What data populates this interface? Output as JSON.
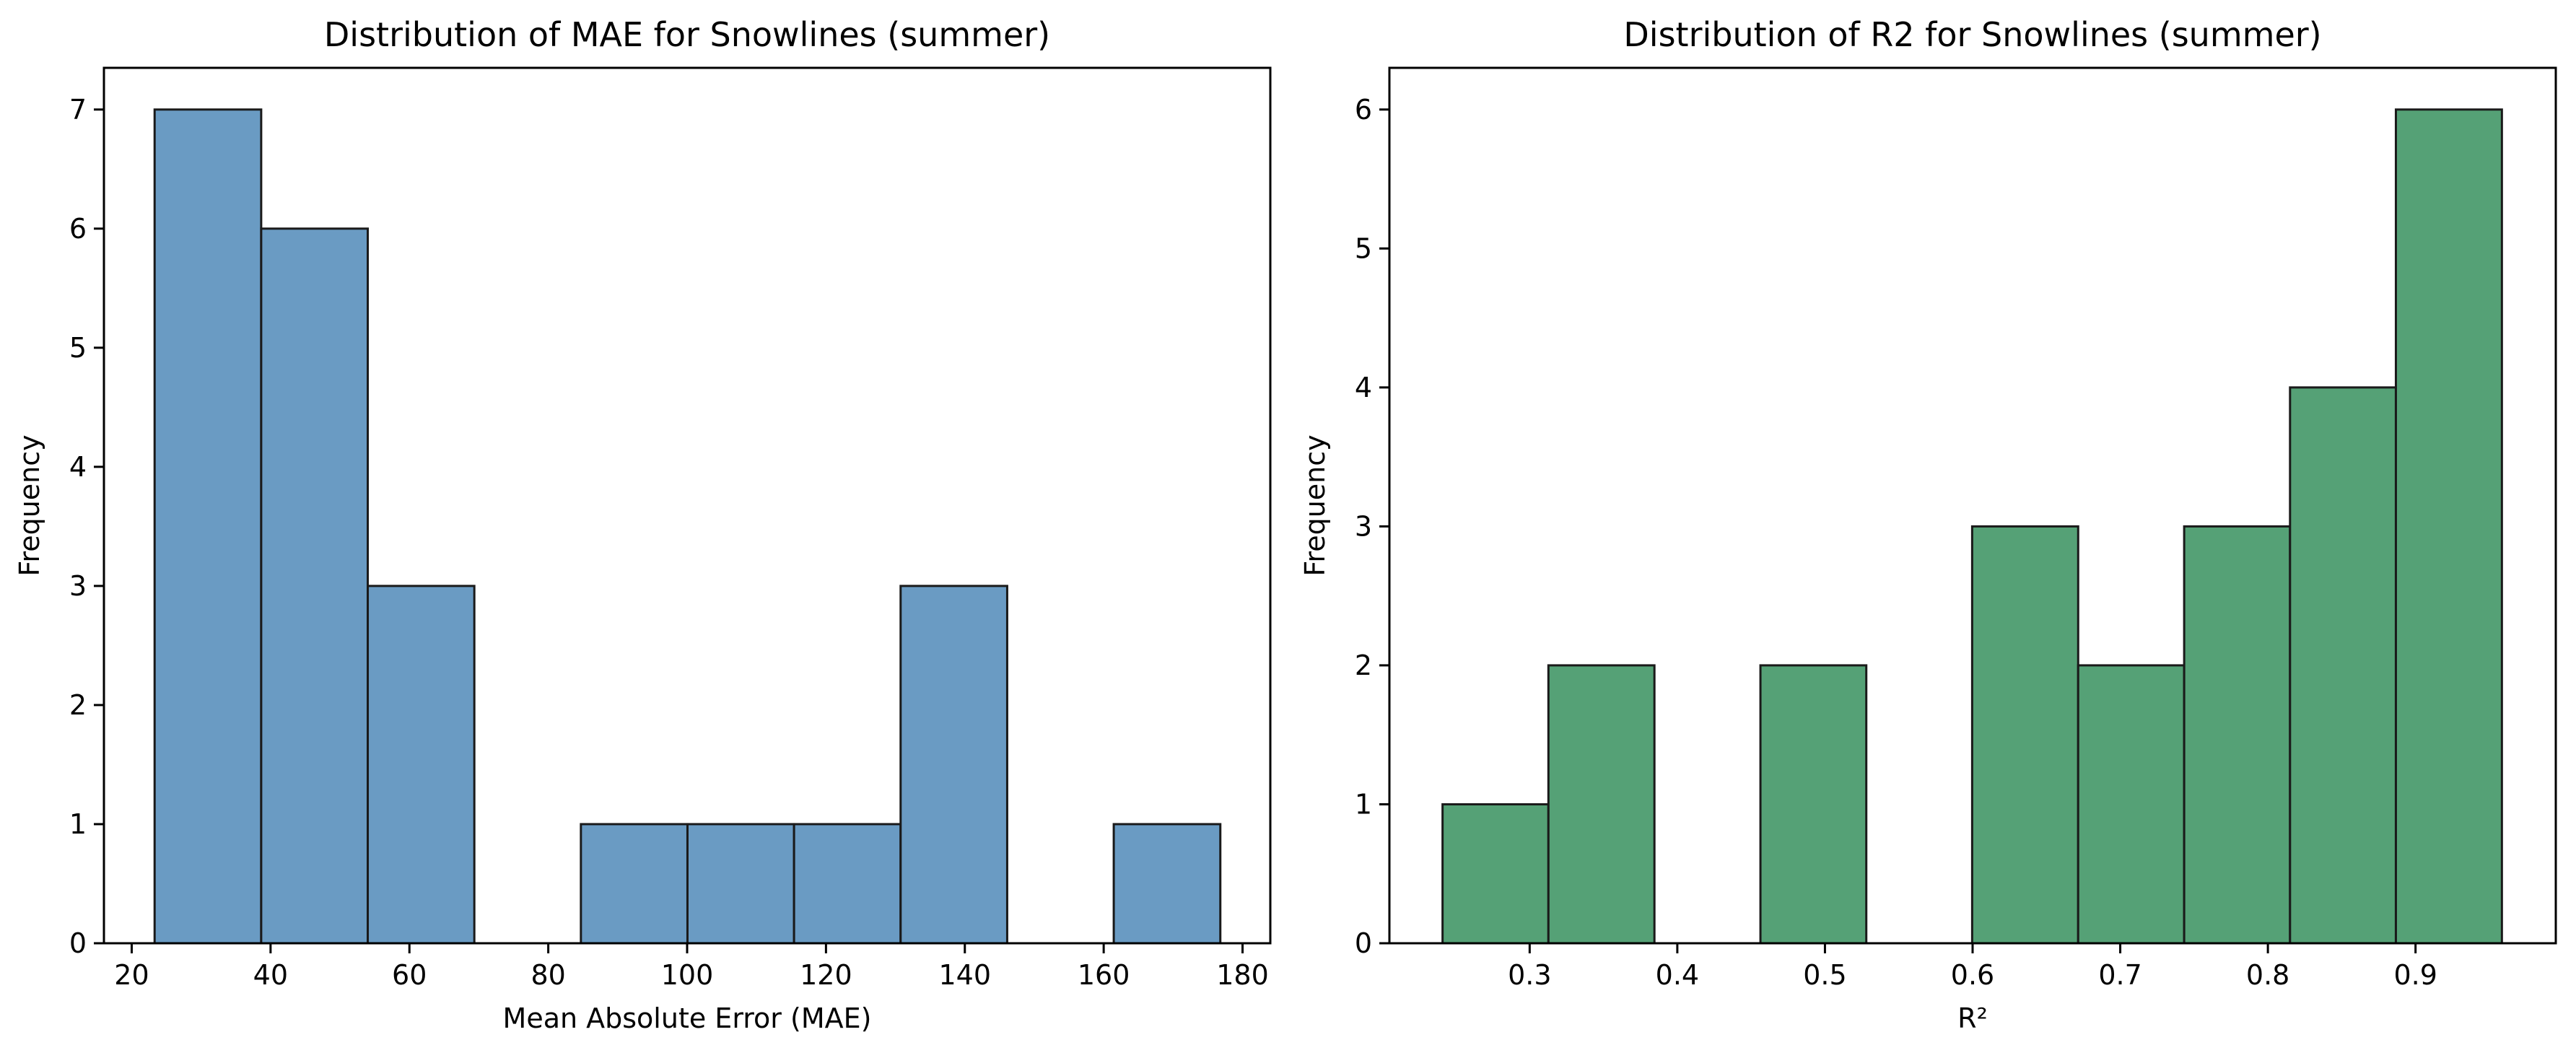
{
  "chart_data": [
    {
      "type": "bar",
      "title": "Distribution of MAE for Snowlines (summer)",
      "xlabel": "Mean Absolute Error (MAE)",
      "ylabel": "Frequency",
      "color": "#6a9bc3",
      "xlim": [
        16,
        184
      ],
      "ylim": [
        0,
        7.35
      ],
      "xticks": [
        20,
        40,
        60,
        80,
        100,
        120,
        140,
        160,
        180
      ],
      "yticks": [
        0,
        1,
        2,
        3,
        4,
        5,
        6,
        7
      ],
      "bin_edges": [
        23.3,
        38.65,
        54.0,
        69.35,
        84.7,
        100.05,
        115.4,
        130.75,
        146.1,
        161.45,
        176.8
      ],
      "values": [
        7,
        6,
        3,
        0,
        1,
        1,
        1,
        3,
        0,
        1
      ],
      "grid": false
    },
    {
      "type": "bar",
      "title": "Distribution of R2 for Snowlines (summer)",
      "xlabel": "R²",
      "ylabel": "Frequency",
      "color": "#55a176",
      "xlim": [
        0.205,
        0.995
      ],
      "ylim": [
        0,
        6.3
      ],
      "xticks": [
        0.3,
        0.4,
        0.5,
        0.6,
        0.7,
        0.8,
        0.9
      ],
      "yticks": [
        0,
        1,
        2,
        3,
        4,
        5,
        6
      ],
      "bin_edges": [
        0.241,
        0.3127,
        0.3845,
        0.4563,
        0.528,
        0.5997,
        0.6715,
        0.7433,
        0.815,
        0.8867,
        0.9585
      ],
      "values": [
        1,
        2,
        0,
        2,
        0,
        3,
        2,
        3,
        4,
        6
      ],
      "grid": false
    }
  ]
}
